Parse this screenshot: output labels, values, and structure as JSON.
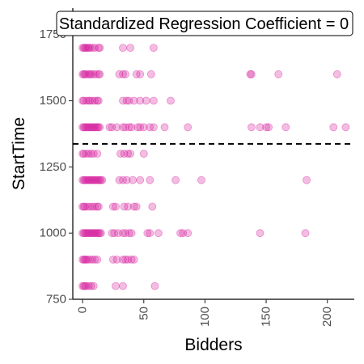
{
  "chart_data": {
    "type": "scatter",
    "title": "Standardized Regression Coefficient = 0",
    "xlabel": "Bidders",
    "ylabel": "StartTime",
    "xlim": [
      -8,
      222
    ],
    "ylim": [
      750,
      1850
    ],
    "x_ticks": [
      0,
      50,
      100,
      150,
      200
    ],
    "x_tick_labels": [
      "0",
      "50",
      "100",
      "150",
      "200"
    ],
    "y_ticks": [
      750,
      1000,
      1250,
      1500,
      1750
    ],
    "y_tick_labels": [
      "750",
      "1000",
      "1250",
      "1500",
      "1750"
    ],
    "reference_line": {
      "orientation": "horizontal",
      "y": 1337,
      "style": "dashed"
    },
    "grid": false,
    "legend": "none",
    "point_color": "#d6249f",
    "line_color": "#000000",
    "points": [
      [
        0,
        1700
      ],
      [
        1,
        1700
      ],
      [
        2,
        1700
      ],
      [
        3,
        1700
      ],
      [
        4,
        1700
      ],
      [
        5,
        1700
      ],
      [
        6,
        1700
      ],
      [
        8,
        1700
      ],
      [
        10,
        1700
      ],
      [
        13,
        1700
      ],
      [
        14,
        1700
      ],
      [
        33,
        1700
      ],
      [
        39,
        1700
      ],
      [
        58,
        1700
      ],
      [
        0,
        1600
      ],
      [
        1,
        1600
      ],
      [
        2,
        1600
      ],
      [
        3,
        1600
      ],
      [
        5,
        1600
      ],
      [
        6,
        1600
      ],
      [
        7,
        1600
      ],
      [
        9,
        1600
      ],
      [
        11,
        1600
      ],
      [
        13,
        1600
      ],
      [
        14,
        1600
      ],
      [
        30,
        1600
      ],
      [
        33,
        1600
      ],
      [
        35,
        1600
      ],
      [
        44,
        1600
      ],
      [
        47,
        1600
      ],
      [
        56,
        1600
      ],
      [
        137,
        1600
      ],
      [
        138,
        1600
      ],
      [
        160,
        1600
      ],
      [
        208,
        1600
      ],
      [
        0,
        1500
      ],
      [
        1,
        1500
      ],
      [
        3,
        1500
      ],
      [
        5,
        1500
      ],
      [
        6,
        1500
      ],
      [
        8,
        1500
      ],
      [
        10,
        1500
      ],
      [
        12,
        1500
      ],
      [
        13,
        1500
      ],
      [
        33,
        1500
      ],
      [
        36,
        1500
      ],
      [
        38,
        1500
      ],
      [
        42,
        1500
      ],
      [
        47,
        1500
      ],
      [
        52,
        1500
      ],
      [
        58,
        1500
      ],
      [
        72,
        1500
      ],
      [
        0,
        1400
      ],
      [
        1,
        1400
      ],
      [
        2,
        1400
      ],
      [
        3,
        1400
      ],
      [
        4,
        1400
      ],
      [
        5,
        1400
      ],
      [
        6,
        1400
      ],
      [
        7,
        1400
      ],
      [
        8,
        1400
      ],
      [
        9,
        1400
      ],
      [
        10,
        1400
      ],
      [
        11,
        1400
      ],
      [
        12,
        1400
      ],
      [
        13,
        1400
      ],
      [
        14,
        1400
      ],
      [
        22,
        1400
      ],
      [
        24,
        1400
      ],
      [
        28,
        1400
      ],
      [
        33,
        1400
      ],
      [
        35,
        1400
      ],
      [
        38,
        1400
      ],
      [
        40,
        1400
      ],
      [
        45,
        1400
      ],
      [
        47,
        1400
      ],
      [
        50,
        1400
      ],
      [
        55,
        1400
      ],
      [
        58,
        1400
      ],
      [
        67,
        1400
      ],
      [
        86,
        1400
      ],
      [
        138,
        1400
      ],
      [
        145,
        1400
      ],
      [
        150,
        1400
      ],
      [
        152,
        1400
      ],
      [
        166,
        1400
      ],
      [
        205,
        1400
      ],
      [
        215,
        1400
      ],
      [
        0,
        1300
      ],
      [
        1,
        1300
      ],
      [
        3,
        1300
      ],
      [
        5,
        1300
      ],
      [
        7,
        1300
      ],
      [
        9,
        1300
      ],
      [
        12,
        1300
      ],
      [
        31,
        1300
      ],
      [
        34,
        1300
      ],
      [
        37,
        1300
      ],
      [
        39,
        1300
      ],
      [
        50,
        1300
      ],
      [
        0,
        1200
      ],
      [
        1,
        1200
      ],
      [
        2,
        1200
      ],
      [
        3,
        1200
      ],
      [
        4,
        1200
      ],
      [
        5,
        1200
      ],
      [
        6,
        1200
      ],
      [
        7,
        1200
      ],
      [
        8,
        1200
      ],
      [
        9,
        1200
      ],
      [
        10,
        1200
      ],
      [
        11,
        1200
      ],
      [
        12,
        1200
      ],
      [
        13,
        1200
      ],
      [
        14,
        1200
      ],
      [
        15,
        1200
      ],
      [
        16,
        1200
      ],
      [
        30,
        1200
      ],
      [
        33,
        1200
      ],
      [
        36,
        1200
      ],
      [
        41,
        1200
      ],
      [
        47,
        1200
      ],
      [
        55,
        1200
      ],
      [
        76,
        1200
      ],
      [
        97,
        1200
      ],
      [
        183,
        1200
      ],
      [
        0,
        1100
      ],
      [
        1,
        1100
      ],
      [
        2,
        1100
      ],
      [
        4,
        1100
      ],
      [
        6,
        1100
      ],
      [
        8,
        1100
      ],
      [
        10,
        1100
      ],
      [
        12,
        1100
      ],
      [
        13,
        1100
      ],
      [
        25,
        1100
      ],
      [
        27,
        1100
      ],
      [
        34,
        1100
      ],
      [
        37,
        1100
      ],
      [
        42,
        1100
      ],
      [
        44,
        1100
      ],
      [
        57,
        1100
      ],
      [
        0,
        1000
      ],
      [
        1,
        1000
      ],
      [
        2,
        1000
      ],
      [
        3,
        1000
      ],
      [
        4,
        1000
      ],
      [
        5,
        1000
      ],
      [
        6,
        1000
      ],
      [
        7,
        1000
      ],
      [
        8,
        1000
      ],
      [
        9,
        1000
      ],
      [
        10,
        1000
      ],
      [
        11,
        1000
      ],
      [
        12,
        1000
      ],
      [
        13,
        1000
      ],
      [
        14,
        1000
      ],
      [
        15,
        1000
      ],
      [
        24,
        1000
      ],
      [
        26,
        1000
      ],
      [
        29,
        1000
      ],
      [
        33,
        1000
      ],
      [
        35,
        1000
      ],
      [
        38,
        1000
      ],
      [
        40,
        1000
      ],
      [
        53,
        1000
      ],
      [
        55,
        1000
      ],
      [
        62,
        1000
      ],
      [
        80,
        1000
      ],
      [
        82,
        1000
      ],
      [
        86,
        1000
      ],
      [
        145,
        1000
      ],
      [
        182,
        1000
      ],
      [
        0,
        900
      ],
      [
        1,
        900
      ],
      [
        2,
        900
      ],
      [
        3,
        900
      ],
      [
        4,
        900
      ],
      [
        6,
        900
      ],
      [
        8,
        900
      ],
      [
        10,
        900
      ],
      [
        12,
        900
      ],
      [
        25,
        900
      ],
      [
        28,
        900
      ],
      [
        33,
        900
      ],
      [
        35,
        900
      ],
      [
        37,
        900
      ],
      [
        40,
        900
      ],
      [
        42,
        900
      ],
      [
        0,
        800
      ],
      [
        1,
        800
      ],
      [
        2,
        800
      ],
      [
        3,
        800
      ],
      [
        5,
        800
      ],
      [
        7,
        800
      ],
      [
        9,
        800
      ],
      [
        27,
        800
      ],
      [
        33,
        800
      ],
      [
        59,
        800
      ]
    ]
  }
}
